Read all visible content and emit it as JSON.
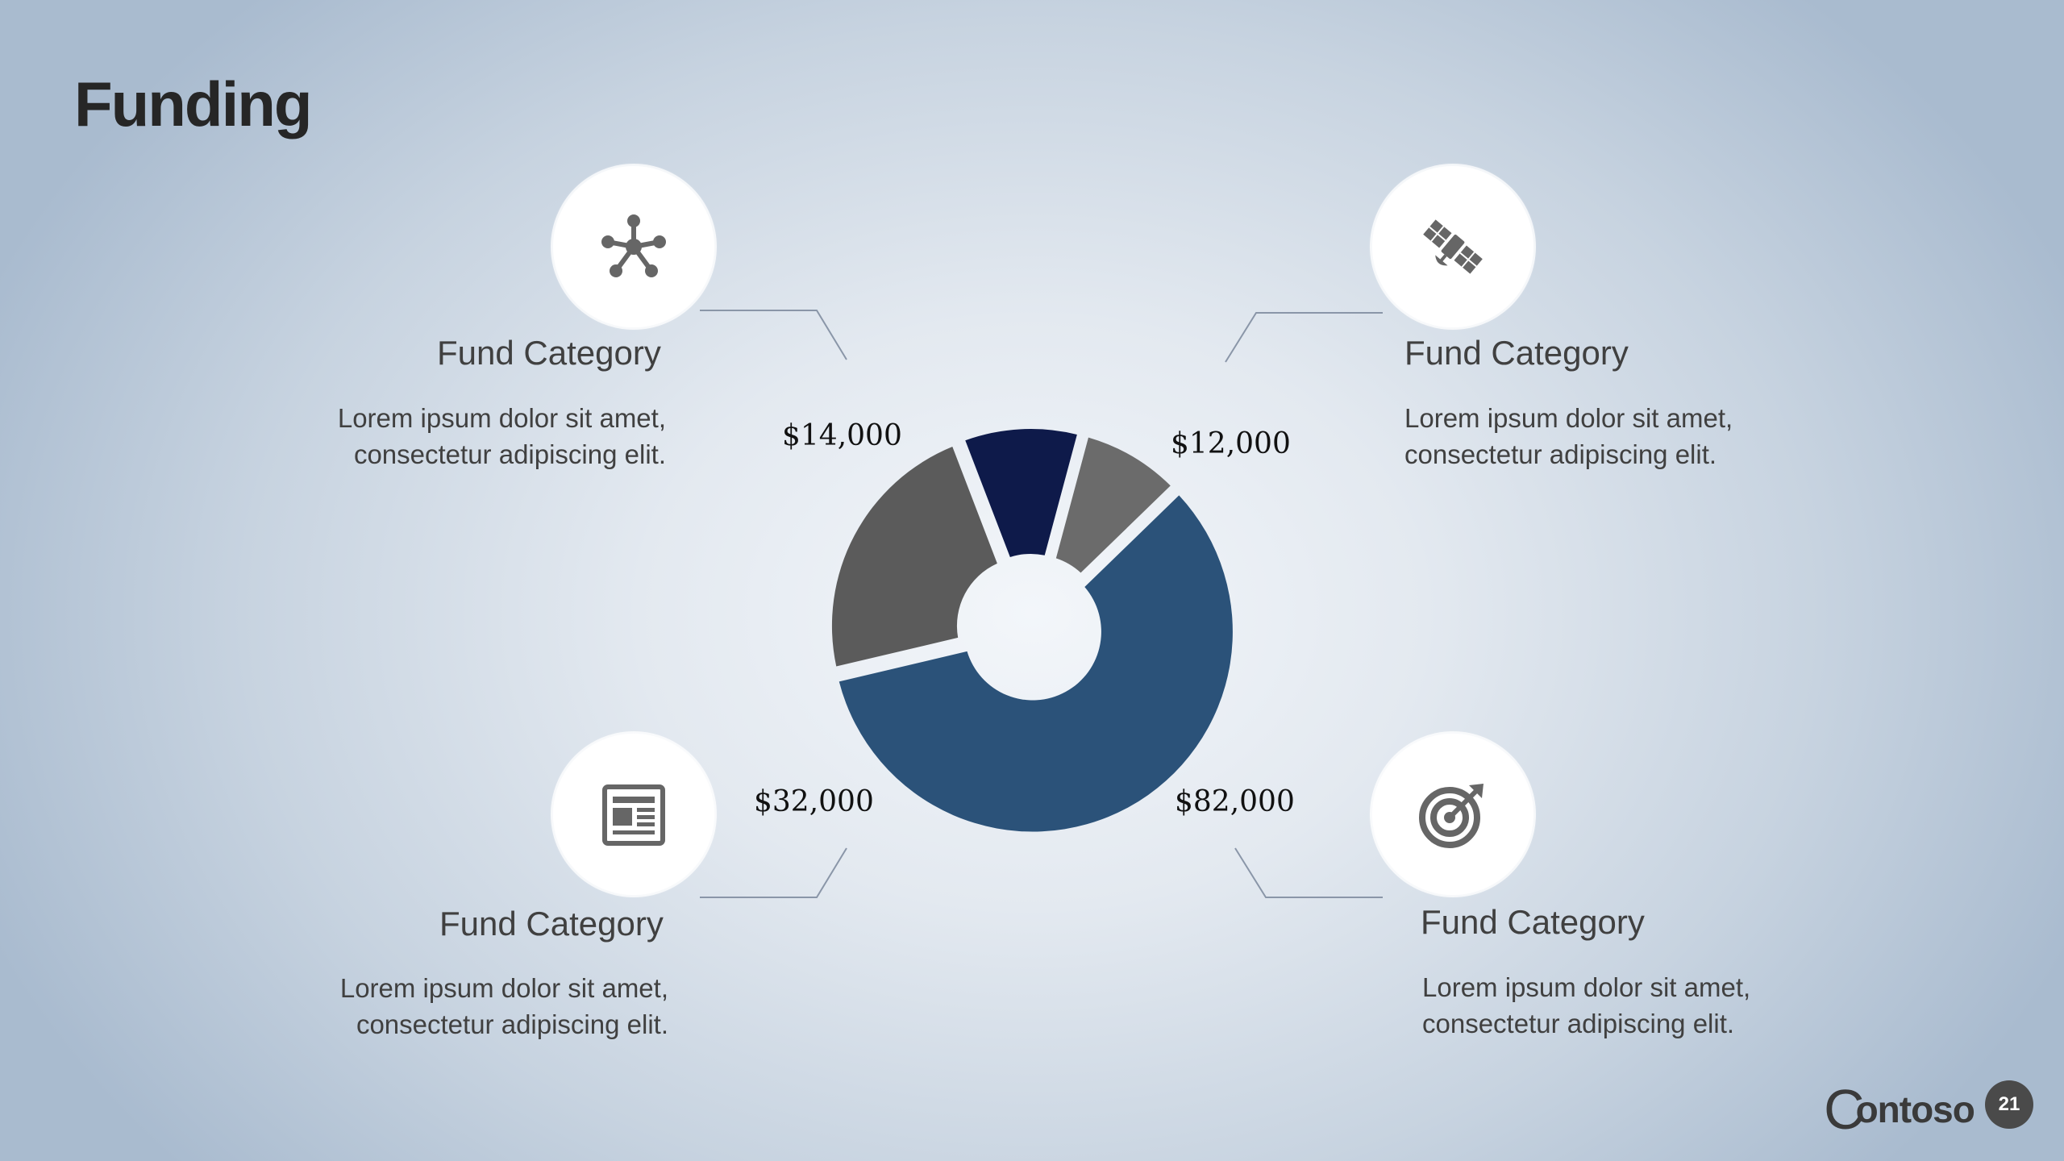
{
  "slide": {
    "title": "Funding",
    "page_number": "21"
  },
  "logo": {
    "text": "ontoso",
    "initial": "C"
  },
  "categories": [
    {
      "title": "Fund Category",
      "description": "Lorem ipsum dolor sit amet,\nconsectetur adipiscing elit.",
      "icon": "network-icon"
    },
    {
      "title": "Fund Category",
      "description": "Lorem ipsum dolor sit amet,\nconsectetur adipiscing elit.",
      "icon": "satellite-icon"
    },
    {
      "title": "Fund Category",
      "description": "Lorem ipsum dolor sit amet,\nconsectetur adipiscing elit.",
      "icon": "newspaper-icon"
    },
    {
      "title": "Fund Category",
      "description": "Lorem ipsum dolor sit amet,\nconsectetur adipiscing elit.",
      "icon": "target-icon"
    }
  ],
  "chart_data": {
    "type": "pie",
    "style": "donut",
    "values": [
      12000,
      82000,
      32000,
      14000
    ],
    "labels": [
      "$12,000",
      "$82,000",
      "$32,000",
      "$14,000"
    ],
    "colors": [
      "#6b6b6b",
      "#2b5279",
      "#5b5b5b",
      "#0e1a4a"
    ],
    "legend": false
  }
}
